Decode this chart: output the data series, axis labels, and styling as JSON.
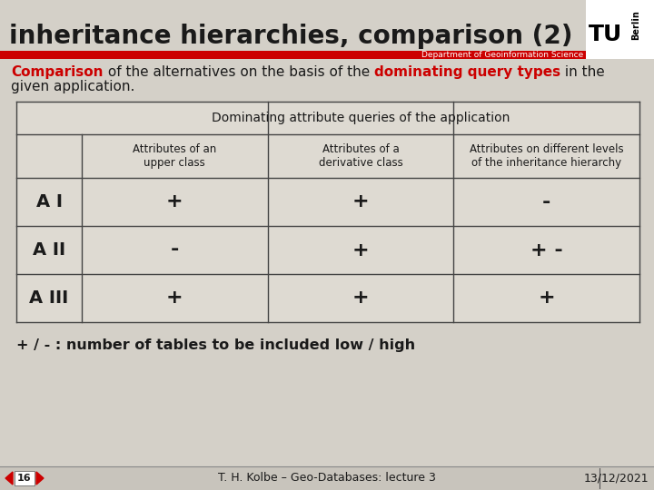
{
  "title": "inheritance hierarchies, comparison (2)",
  "title_color": "#1a1a1a",
  "title_fontsize": 20,
  "bg_color": "#d4d0c8",
  "header_bar_color": "#cc0000",
  "dept_text": "Department of Geoinformation Science",
  "line1_parts": [
    {
      "text": "Comparison",
      "color": "#cc0000",
      "bold": true
    },
    {
      "text": " of the alternatives on the basis of the ",
      "color": "#1a1a1a",
      "bold": false
    },
    {
      "text": "dominating query types",
      "color": "#cc0000",
      "bold": true
    },
    {
      "text": " in the",
      "color": "#1a1a1a",
      "bold": false
    }
  ],
  "line2_parts": [
    {
      "text": "given application.",
      "color": "#1a1a1a",
      "bold": false
    }
  ],
  "table_header_top": "Dominating attribute queries of the application",
  "table_col_headers": [
    "Attributes of an\nupper class",
    "Attributes of a\nderivative class",
    "Attributes on different levels\nof the inheritance hierarchy"
  ],
  "table_row_labels": [
    "A I",
    "A II",
    "A III"
  ],
  "table_data": [
    [
      "+",
      "+",
      "-"
    ],
    [
      "-",
      "+",
      "+ -"
    ],
    [
      "+",
      "+",
      "+"
    ]
  ],
  "legend_line1": "+ / - : number of tables to be included low / high",
  "footer_num": "16",
  "footer_center": "T. H. Kolbe – Geo-Databases: lecture 3",
  "footer_right": "13/12/2021",
  "table_cell_bg": "#dedad2",
  "table_line_color": "#444444",
  "nav_arrow_color": "#cc0000",
  "footer_bg": "#c8c4bc"
}
